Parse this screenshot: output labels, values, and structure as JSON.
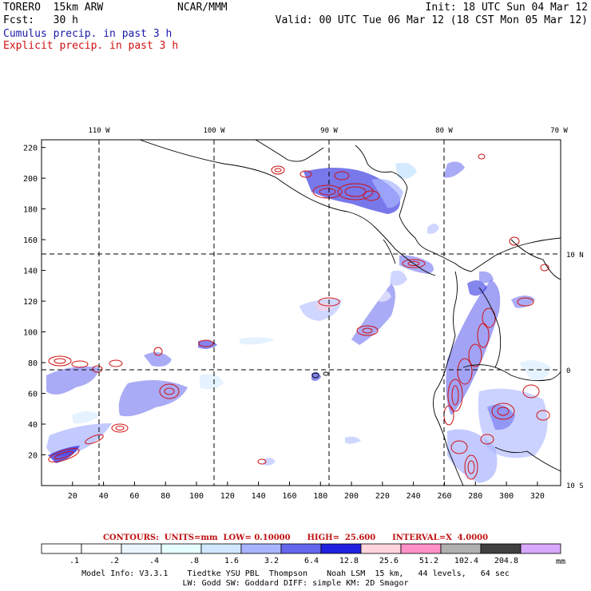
{
  "header": {
    "model": "TORERO  15km ARW",
    "center": "NCAR/MMM",
    "init": "Init: 18 UTC Sun 04 Mar 12",
    "fcst": "Fcst:   30 h",
    "valid": "Valid: 00 UTC Tue 06 Mar 12 (18 CST Mon 05 Mar 12)",
    "field_cumulus": "Cumulus precip. in past 3 h",
    "field_explicit": "Explicit precip. in past 3 h",
    "colors": {
      "cumulus": "#1a1aa8",
      "explicit": "#d01010"
    }
  },
  "map": {
    "longitude_labels": [
      "110 W",
      "100 W",
      "90 W",
      "80 W",
      "70 W"
    ],
    "latitude_labels": [
      "10 N",
      "0",
      "10 S"
    ],
    "x_ticks": [
      "20",
      "40",
      "60",
      "80",
      "100",
      "120",
      "140",
      "160",
      "180",
      "200",
      "220",
      "240",
      "260",
      "280",
      "300",
      "320"
    ],
    "y_ticks": [
      "20",
      "40",
      "60",
      "80",
      "100",
      "120",
      "140",
      "160",
      "180",
      "200",
      "220"
    ],
    "x_range": [
      0,
      335
    ],
    "y_range": [
      0,
      225
    ],
    "grid": "dashed lines at 10 degree intervals"
  },
  "contours": {
    "text": "CONTOURS:  UNITS=mm  LOW= 0.10000      HIGH=  25.600      INTERVAL=X  4.0000",
    "color": "#d01010"
  },
  "colorbar": {
    "labels": [
      ".1",
      ".2",
      ".4",
      ".8",
      "1.6",
      "3.2",
      "6.4",
      "12.8",
      "25.6",
      "51.2",
      "102.4",
      "204.8"
    ],
    "units": "mm",
    "colors": [
      "#ffffff",
      "#ffffff",
      "#eaf6ff",
      "#e6ffff",
      "#cfe8ff",
      "#a8b4ff",
      "#6466ee",
      "#2020e0",
      "#ffd4dc",
      "#ff90c8",
      "#b0b0b0",
      "#404040",
      "#d8a8ff"
    ]
  },
  "model_info": {
    "line1": "Model Info: V3.3.1    Tiedtke YSU PBL  Thompson    Noah LSM  15 km,   44 levels,   64 sec",
    "line2": "LW: Godd SW: Goddard DIFF: simple KM: 2D Smagor"
  }
}
